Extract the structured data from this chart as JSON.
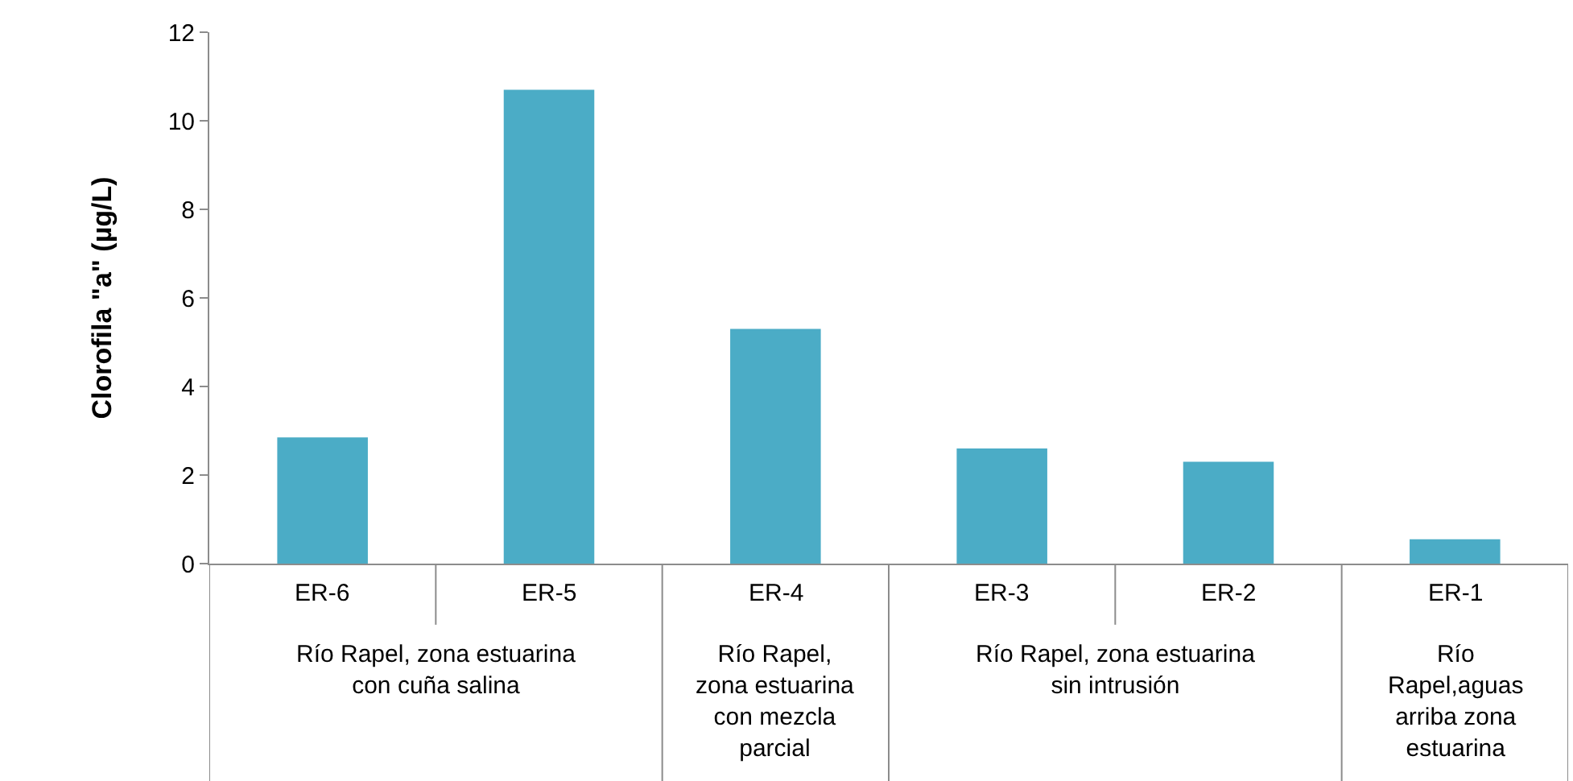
{
  "chart_data": {
    "type": "bar",
    "ylabel": "Clorofila \"a\" (µg/L)",
    "categories": [
      "ER-6",
      "ER-5",
      "ER-4",
      "ER-3",
      "ER-2",
      "ER-1"
    ],
    "values": [
      2.85,
      10.7,
      5.3,
      2.6,
      2.3,
      0.55
    ],
    "color": "#4bacc6",
    "ylim": [
      0,
      12
    ],
    "yticks": [
      0,
      2,
      4,
      6,
      8,
      10,
      12
    ],
    "annotations": [
      "Río Rapel, zona estuarina con cuña salina",
      "Río Rapel, zona estuarina con mezcla parcial",
      "Río Rapel, zona estuarina sin intrusión",
      "Río Rapel,aguas arriba zona estuarina"
    ]
  }
}
